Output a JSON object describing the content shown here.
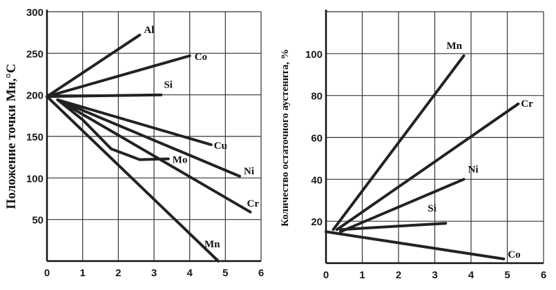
{
  "chart_data": [
    {
      "type": "line",
      "ylabel": "Положение точки Мн,°C",
      "xlim": [
        0,
        6
      ],
      "ylim": [
        0,
        300
      ],
      "x_ticks": [
        "0",
        "1",
        "2",
        "3",
        "4",
        "5",
        "6"
      ],
      "y_ticks": [
        "50",
        "100",
        "150",
        "200",
        "250",
        "300"
      ],
      "series": [
        {
          "name": "Al",
          "x": [
            0,
            2.6
          ],
          "y": [
            198,
            272
          ]
        },
        {
          "name": "Co",
          "x": [
            0,
            4.0
          ],
          "y": [
            198,
            247
          ]
        },
        {
          "name": "Si",
          "x": [
            0,
            3.2
          ],
          "y": [
            198,
            200
          ]
        },
        {
          "name": "Cu",
          "x": [
            0.3,
            4.6
          ],
          "y": [
            194,
            140
          ]
        },
        {
          "name": "Ni",
          "x": [
            0.3,
            5.4
          ],
          "y": [
            194,
            102
          ]
        },
        {
          "name": "Mo",
          "x": [
            0.3,
            1.0,
            1.8,
            2.6,
            3.4
          ],
          "y": [
            194,
            170,
            135,
            122,
            123
          ]
        },
        {
          "name": "Cr",
          "x": [
            0.3,
            5.7
          ],
          "y": [
            194,
            59
          ]
        },
        {
          "name": "Mn",
          "x": [
            0,
            4.8
          ],
          "y": [
            198,
            0
          ]
        }
      ]
    },
    {
      "type": "line",
      "ylabel": "Количество остаточного аустенита, %",
      "xlim": [
        0,
        6
      ],
      "ylim": [
        0,
        120
      ],
      "x_ticks": [
        "0",
        "1",
        "2",
        "3",
        "4",
        "5",
        "6"
      ],
      "y_ticks": [
        "20",
        "40",
        "60",
        "80",
        "100"
      ],
      "series": [
        {
          "name": "Mn",
          "x": [
            0.2,
            3.8
          ],
          "y": [
            16,
            99
          ]
        },
        {
          "name": "Cr",
          "x": [
            0.3,
            5.3
          ],
          "y": [
            16,
            76
          ]
        },
        {
          "name": "Ni",
          "x": [
            0.4,
            3.8
          ],
          "y": [
            15,
            40
          ]
        },
        {
          "name": "Si",
          "x": [
            0.4,
            3.3
          ],
          "y": [
            16,
            19
          ]
        },
        {
          "name": "Co",
          "x": [
            0,
            4.9
          ],
          "y": [
            15,
            2
          ]
        }
      ]
    }
  ]
}
